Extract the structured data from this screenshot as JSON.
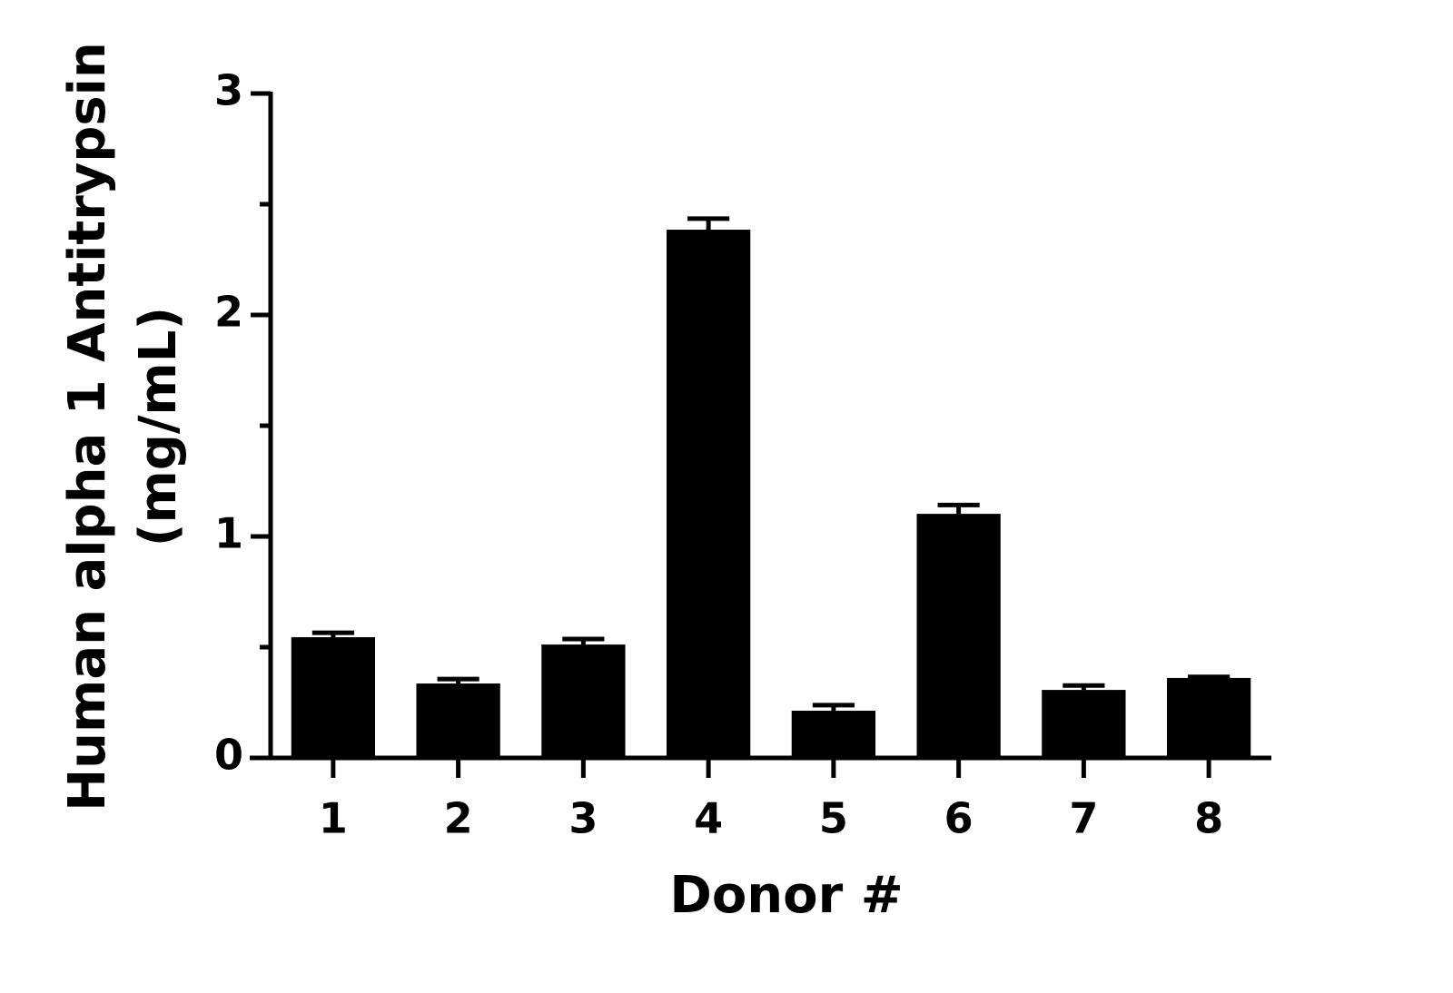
{
  "chart_data": {
    "type": "bar",
    "xlabel": "Donor #",
    "ylabel": [
      "Human alpha 1 Antitrypsin",
      "(mg/mL)"
    ],
    "categories": [
      "1",
      "2",
      "3",
      "4",
      "5",
      "6",
      "7",
      "8"
    ],
    "values": [
      0.545,
      0.336,
      0.512,
      2.385,
      0.213,
      1.102,
      0.307,
      0.361
    ],
    "errors": [
      0.02,
      0.02,
      0.025,
      0.05,
      0.025,
      0.04,
      0.02,
      0.005
    ],
    "color": "#000000",
    "ylim": [
      0,
      3
    ],
    "yticks": [
      0,
      1,
      2,
      3
    ],
    "yminor_ticks": [
      0.5,
      1.5,
      2.5
    ],
    "grid": false
  }
}
